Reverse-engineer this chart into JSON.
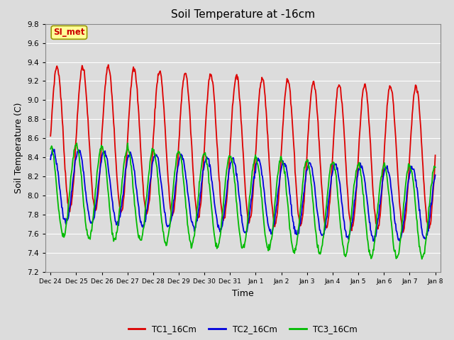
{
  "title": "Soil Temperature at -16cm",
  "xlabel": "Time",
  "ylabel": "Soil Temperature (C)",
  "ylim": [
    7.2,
    9.8
  ],
  "bg_color": "#dcdcdc",
  "plot_bg_color": "#dcdcdc",
  "grid_color": "#ffffff",
  "annotation_text": "SI_met",
  "annotation_bg": "#ffff99",
  "annotation_border": "#999900",
  "annotation_text_color": "#cc0000",
  "x_tick_labels": [
    "Dec 24",
    "Dec 25",
    "Dec 26",
    "Dec 27",
    "Dec 28",
    "Dec 29",
    "Dec 30",
    "Dec 31",
    "Jan 1",
    "Jan 2",
    "Jan 3",
    "Jan 4",
    "Jan 5",
    "Jan 6",
    "Jan 7",
    "Jan 8"
  ],
  "line_colors": {
    "TC1_16Cm": "#dd0000",
    "TC2_16Cm": "#0000dd",
    "TC3_16Cm": "#00bb00"
  },
  "legend_labels": [
    "TC1_16Cm",
    "TC2_16Cm",
    "TC3_16Cm"
  ],
  "line_width": 1.3,
  "title_fontsize": 11,
  "axis_label_fontsize": 9,
  "yticks": [
    7.2,
    7.4,
    7.6,
    7.8,
    8.0,
    8.2,
    8.4,
    8.6,
    8.8,
    9.0,
    9.2,
    9.4,
    9.6,
    9.8
  ]
}
